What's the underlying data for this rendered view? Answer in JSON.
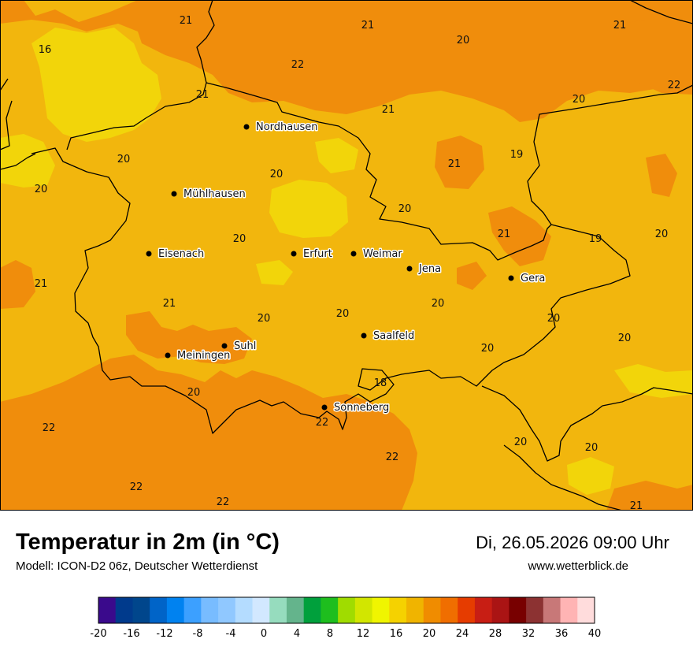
{
  "header": {
    "title": "Temperatur in 2m (in °C)",
    "model": "Modell: ICON-D2 06z, Deutscher Wetterdienst",
    "datetime": "Di, 26.05.2026 09:00 Uhr",
    "website": "www.wetterblick.de"
  },
  "cities": [
    "Nordhausen",
    "Mühlhausen",
    "Eisenach",
    "Erfurt",
    "Weimar",
    "Jena",
    "Gera",
    "Saalfeld",
    "Suhl",
    "Meiningen",
    "Sonneberg"
  ],
  "contour_labels": [
    "21",
    "16",
    "21",
    "20",
    "21",
    "22",
    "21",
    "22",
    "21",
    "20",
    "19",
    "20",
    "20",
    "21",
    "20",
    "20",
    "21",
    "19",
    "20",
    "20",
    "21",
    "20",
    "21",
    "20",
    "20",
    "20",
    "20",
    "20",
    "20",
    "22",
    "18",
    "22",
    "22",
    "22",
    "20",
    "20",
    "22",
    "22",
    "21"
  ],
  "legend": {
    "ticks": [
      "-20",
      "-16",
      "-12",
      "-8",
      "-4",
      "0",
      "4",
      "8",
      "12",
      "16",
      "20",
      "24",
      "28",
      "32",
      "36",
      "40"
    ],
    "colors": [
      "#3a0a8c",
      "#003a8c",
      "#00468c",
      "#0064c8",
      "#0082f0",
      "#3ca0ff",
      "#78bcff",
      "#90c8ff",
      "#b4dcff",
      "#d2e8ff",
      "#96dcbe",
      "#64b48c",
      "#00a03c",
      "#1ebe1e",
      "#a0dc00",
      "#d2e600",
      "#f0f500",
      "#f5d200",
      "#f0b400",
      "#f08c00",
      "#f06e00",
      "#e63c00",
      "#c81e14",
      "#aa1414",
      "#780000",
      "#8c3232",
      "#c87878",
      "#ffb4b4",
      "#ffdcdc"
    ]
  },
  "colors": {
    "temp_16_18": "#f2d50a",
    "temp_18_20": "#f2b60d",
    "temp_20_22": "#f08d0c",
    "border": "#000000"
  }
}
